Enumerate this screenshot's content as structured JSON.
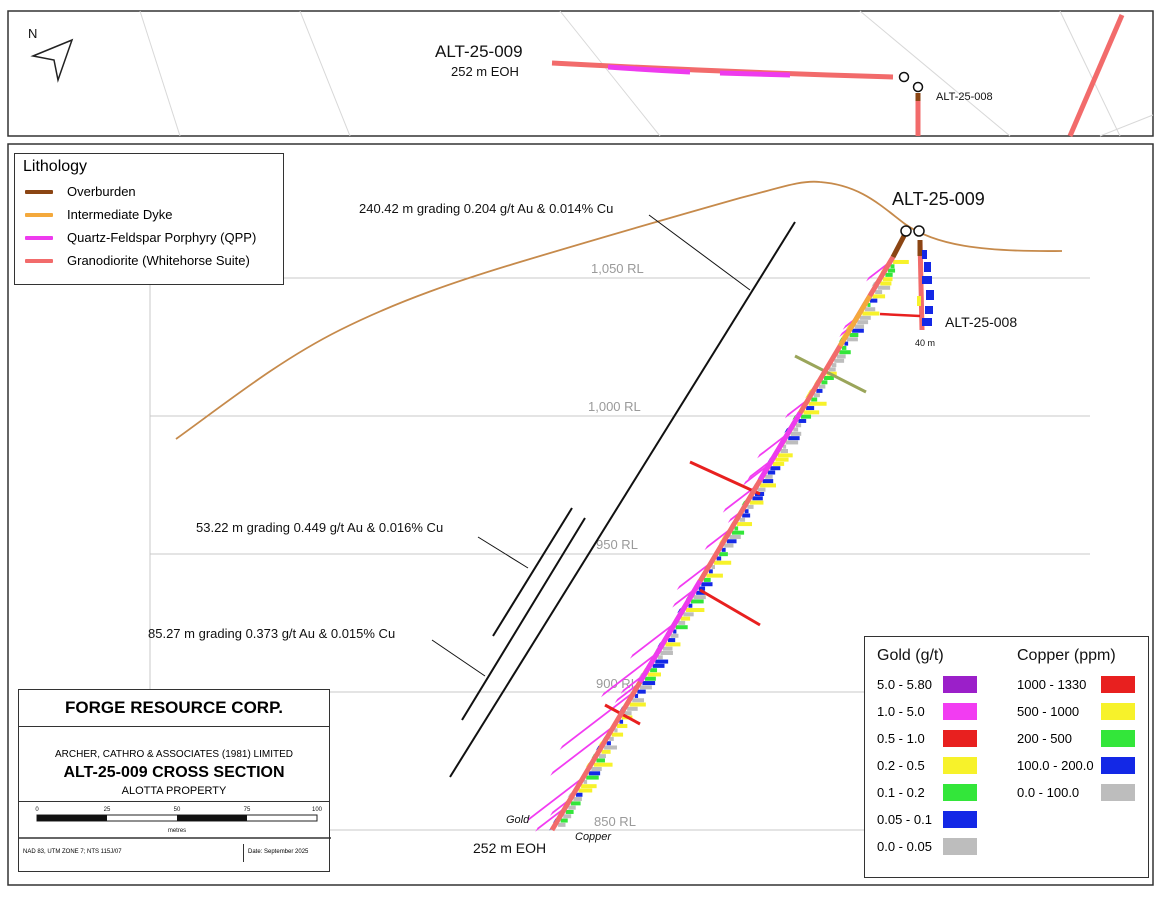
{
  "plan": {
    "north": "N",
    "hole_009": "ALT-25-009",
    "hole_009_depth": "252 m EOH",
    "hole_008": "ALT-25-008"
  },
  "section": {
    "hole_009": "ALT-25-009",
    "hole_008": "ALT-25-008",
    "hole_008_depth": "40 m",
    "eoh": "252 m EOH",
    "gold_label": "Gold",
    "copper_label": "Copper",
    "rl_labels": [
      "1,050 RL",
      "1,000 RL",
      "950 RL",
      "900 RL",
      "850 RL"
    ],
    "intercepts": [
      "240.42 m grading 0.204 g/t Au & 0.014% Cu",
      "53.22 m grading 0.449 g/t Au & 0.016% Cu",
      "85.27 m grading 0.373 g/t Au & 0.015% Cu"
    ]
  },
  "lithology": {
    "title": "Lithology",
    "items": [
      {
        "label": "Overburden",
        "color": "#8B4513"
      },
      {
        "label": "Intermediate Dyke",
        "color": "#F4A93C"
      },
      {
        "label": "Quartz-Feldspar Porphyry (QPP)",
        "color": "#EE3BEE"
      },
      {
        "label": "Granodiorite (Whitehorse Suite)",
        "color": "#F26B6B"
      }
    ]
  },
  "grades": {
    "gold_title": "Gold (g/t)",
    "copper_title": "Copper (ppm)",
    "gold": [
      {
        "label": "5.0 - 5.80",
        "color": "#9B1FC9"
      },
      {
        "label": "1.0 - 5.0",
        "color": "#F23CF2"
      },
      {
        "label": "0.5 - 1.0",
        "color": "#E8201F"
      },
      {
        "label": "0.2 - 0.5",
        "color": "#F7F22A"
      },
      {
        "label": "0.1 - 0.2",
        "color": "#33E63A"
      },
      {
        "label": "0.05 - 0.1",
        "color": "#1328E6"
      },
      {
        "label": "0.0 - 0.05",
        "color": "#BDBDBD"
      }
    ],
    "copper": [
      {
        "label": "1000 - 1330",
        "color": "#E8201F"
      },
      {
        "label": "500 - 1000",
        "color": "#F7F22A"
      },
      {
        "label": "200 - 500",
        "color": "#33E63A"
      },
      {
        "label": "100.0 - 200.0",
        "color": "#1328E6"
      },
      {
        "label": "0.0 - 100.0",
        "color": "#BDBDBD"
      }
    ]
  },
  "title_block": {
    "company": "FORGE RESOURCE CORP.",
    "consultant": "ARCHER, CATHRO & ASSOCIATES (1981) LIMITED",
    "section_title": "ALT-25-009 CROSS SECTION",
    "property": "ALOTTA PROPERTY",
    "scale_ticks": [
      "0",
      "25",
      "50",
      "75",
      "100"
    ],
    "scale_unit": "metres",
    "projection": "NAD 83, UTM ZONE 7; NTS 115J/07",
    "date": "Date: September 2025"
  }
}
